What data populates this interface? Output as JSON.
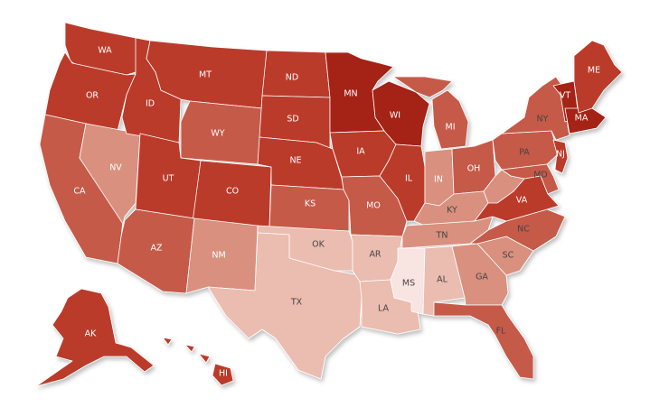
{
  "colors": {
    "c5": "#a52416",
    "c4": "#bb3a2a",
    "c3": "#c65a48",
    "c2": "#d9907f",
    "c1": "#ebbcb0",
    "c0": "#f8e4e0"
  },
  "states": {
    "WA": {
      "label": "WA",
      "shade": "c4"
    },
    "OR": {
      "label": "OR",
      "shade": "c4"
    },
    "CA": {
      "label": "CA",
      "shade": "c3"
    },
    "NV": {
      "label": "NV",
      "shade": "c2"
    },
    "ID": {
      "label": "ID",
      "shade": "c4"
    },
    "MT": {
      "label": "MT",
      "shade": "c4"
    },
    "WY": {
      "label": "WY",
      "shade": "c3"
    },
    "UT": {
      "label": "UT",
      "shade": "c4"
    },
    "CO": {
      "label": "CO",
      "shade": "c4"
    },
    "AZ": {
      "label": "AZ",
      "shade": "c3"
    },
    "NM": {
      "label": "NM",
      "shade": "c2"
    },
    "ND": {
      "label": "ND",
      "shade": "c4"
    },
    "SD": {
      "label": "SD",
      "shade": "c4"
    },
    "NE": {
      "label": "NE",
      "shade": "c4"
    },
    "KS": {
      "label": "KS",
      "shade": "c3"
    },
    "OK": {
      "label": "OK",
      "shade": "c1"
    },
    "TX": {
      "label": "TX",
      "shade": "c1"
    },
    "MN": {
      "label": "MN",
      "shade": "c5"
    },
    "IA": {
      "label": "IA",
      "shade": "c4"
    },
    "MO": {
      "label": "MO",
      "shade": "c3"
    },
    "AR": {
      "label": "AR",
      "shade": "c1"
    },
    "LA": {
      "label": "LA",
      "shade": "c1"
    },
    "WI": {
      "label": "WI",
      "shade": "c5"
    },
    "IL": {
      "label": "IL",
      "shade": "c4"
    },
    "MI": {
      "label": "MI",
      "shade": "c3"
    },
    "IN": {
      "label": "IN",
      "shade": "c2"
    },
    "OH": {
      "label": "OH",
      "shade": "c3"
    },
    "KY": {
      "label": "KY",
      "shade": "c2"
    },
    "TN": {
      "label": "TN",
      "shade": "c2"
    },
    "MS": {
      "label": "MS",
      "shade": "c0"
    },
    "AL": {
      "label": "AL",
      "shade": "c1"
    },
    "GA": {
      "label": "GA",
      "shade": "c2"
    },
    "FL": {
      "label": "FL",
      "shade": "c3"
    },
    "SC": {
      "label": "SC",
      "shade": "c2"
    },
    "NC": {
      "label": "NC",
      "shade": "c3"
    },
    "VA": {
      "label": "VA",
      "shade": "c4"
    },
    "WV": {
      "label": "",
      "shade": "c2"
    },
    "PA": {
      "label": "PA",
      "shade": "c3"
    },
    "NY": {
      "label": "NY",
      "shade": "c3"
    },
    "MD": {
      "label": "MD",
      "shade": "c3"
    },
    "NJ": {
      "label": "NJ",
      "shade": "c4"
    },
    "VT": {
      "label": "VT",
      "shade": "c5"
    },
    "MA": {
      "label": "MA",
      "shade": "c5"
    },
    "ME": {
      "label": "ME",
      "shade": "c4"
    },
    "AK": {
      "label": "AK",
      "shade": "c4"
    },
    "HI": {
      "label": "HI",
      "shade": "c4"
    }
  }
}
